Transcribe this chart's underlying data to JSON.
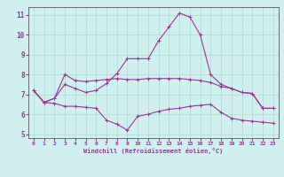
{
  "xlabel": "Windchill (Refroidissement éolien,°C)",
  "background_color": "#cff0ee",
  "grid_color": "#b0d8d0",
  "line_color": "#993399",
  "x": [
    0,
    1,
    2,
    3,
    4,
    5,
    6,
    7,
    8,
    9,
    10,
    11,
    12,
    13,
    14,
    15,
    16,
    17,
    18,
    19,
    20,
    21,
    22,
    23
  ],
  "line_upper": [
    7.2,
    6.6,
    6.8,
    7.5,
    7.3,
    7.1,
    7.2,
    7.55,
    8.05,
    8.8,
    8.8,
    8.8,
    9.7,
    10.4,
    11.1,
    10.9,
    10.0,
    8.0,
    7.5,
    7.3,
    7.1,
    7.05,
    6.3,
    6.3
  ],
  "line_mid": [
    7.2,
    6.6,
    6.8,
    8.0,
    7.7,
    7.65,
    7.7,
    7.75,
    7.8,
    7.75,
    7.75,
    7.8,
    7.8,
    7.8,
    7.8,
    7.75,
    7.7,
    7.6,
    7.4,
    7.3,
    7.1,
    7.05,
    6.3,
    6.3
  ],
  "line_lower": [
    7.2,
    6.6,
    6.55,
    6.4,
    6.4,
    6.35,
    6.3,
    5.7,
    5.5,
    5.2,
    5.9,
    6.0,
    6.15,
    6.25,
    6.3,
    6.4,
    6.45,
    6.5,
    6.1,
    5.8,
    5.7,
    5.65,
    5.6,
    5.55
  ],
  "ylim": [
    4.8,
    11.4
  ],
  "xlim": [
    -0.5,
    23.5
  ],
  "yticks": [
    5,
    6,
    7,
    8,
    9,
    10,
    11
  ],
  "xticks": [
    0,
    1,
    2,
    3,
    4,
    5,
    6,
    7,
    8,
    9,
    10,
    11,
    12,
    13,
    14,
    15,
    16,
    17,
    18,
    19,
    20,
    21,
    22,
    23
  ]
}
